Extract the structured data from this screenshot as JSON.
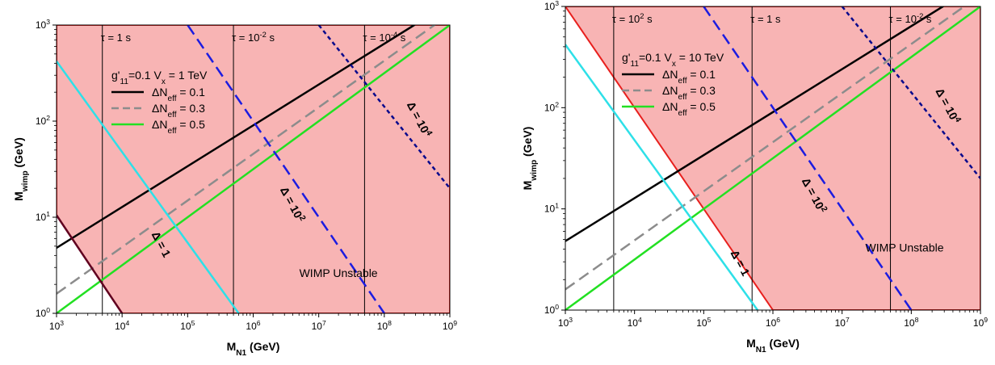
{
  "chart_data": [
    {
      "type": "line",
      "xlabel": "M_N1 (GeV)",
      "ylabel": "M_wimp (GeV)",
      "x_scale": "log",
      "y_scale": "log",
      "xlim": [
        1000,
        1000000000
      ],
      "ylim": [
        1,
        1000
      ],
      "x_ticks": [
        "10^3",
        "10^4",
        "10^5",
        "10^6",
        "10^7",
        "10^8",
        "10^9"
      ],
      "y_ticks": [
        "10^0",
        "10^1",
        "10^2",
        "10^3"
      ],
      "colors": {
        "region": "#f8b4b4",
        "region_border": "#e8201e",
        "line_01": "#000000",
        "line_03": "#8c8c8c",
        "line_05": "#22e022",
        "delta_1": "#2ee0e8",
        "delta_1e2": "#1c1ce0",
        "delta_1e4": "#0a0a8c",
        "lifetime": "#000000",
        "lower_boundary": "#600020"
      },
      "legend": {
        "header": "g'11=0.1  Vx = 1 TeV",
        "entries": [
          {
            "label": "ΔNeff = 0.1",
            "style": "solid",
            "color": "#000000"
          },
          {
            "label": "ΔNeff = 0.3",
            "style": "dashed",
            "color": "#8c8c8c"
          },
          {
            "label": "ΔNeff = 0.5",
            "style": "solid",
            "color": "#22e022"
          }
        ]
      },
      "lifetime_lines": [
        {
          "x": 5000,
          "label": "τ = 1 s"
        },
        {
          "x": 500000,
          "label": "τ = 10^-2 s"
        },
        {
          "x": 50000000,
          "label": "τ = 10^-4 s"
        }
      ],
      "series": [
        {
          "name": "ΔNeff = 0.1",
          "style": "solid",
          "color": "#000000",
          "x": [
            1000,
            1000000000
          ],
          "y": [
            4.8,
            1700
          ]
        },
        {
          "name": "ΔNeff = 0.3",
          "style": "dashed",
          "color": "#8c8c8c",
          "x": [
            1000,
            1000000000
          ],
          "y": [
            1.6,
            1300
          ]
        },
        {
          "name": "ΔNeff = 0.5",
          "style": "solid",
          "color": "#22e022",
          "x": [
            1000,
            1000000000
          ],
          "y": [
            1,
            1000
          ]
        },
        {
          "name": "Δ = 1",
          "style": "solid",
          "color": "#2ee0e8",
          "x": [
            1000,
            600000
          ],
          "y": [
            420,
            1
          ]
        },
        {
          "name": "Δ = 10^2",
          "style": "dashed",
          "color": "#1c1ce0",
          "x": [
            100000,
            100000000
          ],
          "y": [
            1000,
            1
          ]
        },
        {
          "name": "Δ = 10^4",
          "style": "dotted",
          "color": "#0a0a8c",
          "x": [
            10000000,
            1000000000
          ],
          "y": [
            1000,
            20
          ]
        },
        {
          "name": "",
          "style": "solid",
          "color": "#600020",
          "x": [
            1000,
            10000
          ],
          "y": [
            10.5,
            1
          ]
        }
      ],
      "region": {
        "label": "WIMP Unstable",
        "boundary": {
          "x": [
            1000,
            10000
          ],
          "y": [
            10.5,
            1
          ]
        }
      },
      "annotations": [
        {
          "text": "Δ = 1",
          "x": 35000,
          "y": 5
        },
        {
          "text": "Δ = 10^2",
          "x": 3500000,
          "y": 13
        },
        {
          "text": "Δ = 10^4",
          "x": 300000000,
          "y": 100
        },
        {
          "text": "WIMP Unstable",
          "x": 20000000,
          "y": 2.4
        }
      ]
    },
    {
      "type": "line",
      "xlabel": "M_N1 (GeV)",
      "ylabel": "M_wimp (GeV)",
      "x_scale": "log",
      "y_scale": "log",
      "xlim": [
        1000,
        1000000000
      ],
      "ylim": [
        1,
        1000
      ],
      "x_ticks": [
        "10^3",
        "10^4",
        "10^5",
        "10^6",
        "10^7",
        "10^8",
        "10^9"
      ],
      "y_ticks": [
        "10^0",
        "10^1",
        "10^2",
        "10^3"
      ],
      "colors": {
        "region": "#f8b4b4",
        "region_border": "#e8201e"
      },
      "legend": {
        "header": "g'11=0.1  Vx = 10 TeV",
        "entries": [
          {
            "label": "ΔNeff = 0.1",
            "style": "solid",
            "color": "#000000"
          },
          {
            "label": "ΔNeff = 0.3",
            "style": "dashed",
            "color": "#8c8c8c"
          },
          {
            "label": "ΔNeff = 0.5",
            "style": "solid",
            "color": "#22e022"
          }
        ]
      },
      "lifetime_lines": [
        {
          "x": 5000,
          "label": "τ = 10^2 s"
        },
        {
          "x": 500000,
          "label": "τ = 1 s"
        },
        {
          "x": 50000000,
          "label": "τ = 10^-2 s"
        }
      ],
      "series": [
        {
          "name": "ΔNeff = 0.1",
          "style": "solid",
          "color": "#000000",
          "x": [
            1000,
            1000000000
          ],
          "y": [
            4.8,
            1700
          ]
        },
        {
          "name": "ΔNeff = 0.3",
          "style": "dashed",
          "color": "#8c8c8c",
          "x": [
            1000,
            1000000000
          ],
          "y": [
            1.6,
            1300
          ]
        },
        {
          "name": "ΔNeff = 0.5",
          "style": "solid",
          "color": "#22e022",
          "x": [
            1000,
            1000000000
          ],
          "y": [
            1,
            1000
          ]
        },
        {
          "name": "Δ = 1",
          "style": "solid",
          "color": "#2ee0e8",
          "x": [
            1000,
            600000
          ],
          "y": [
            420,
            1
          ]
        },
        {
          "name": "Δ = 10^2",
          "style": "dashed",
          "color": "#1c1ce0",
          "x": [
            100000,
            100000000
          ],
          "y": [
            1000,
            1
          ]
        },
        {
          "name": "Δ = 10^4",
          "style": "dotted",
          "color": "#0a0a8c",
          "x": [
            10000000,
            1000000000
          ],
          "y": [
            1000,
            20
          ]
        }
      ],
      "region": {
        "label": "WIMP Unstable",
        "boundary": {
          "x": [
            1000,
            1000000
          ],
          "y": [
            1000,
            1
          ]
        }
      },
      "annotations": [
        {
          "text": "Δ = 1",
          "x": 300000,
          "y": 2.8
        },
        {
          "text": "Δ = 10^2",
          "x": 3500000,
          "y": 13
        },
        {
          "text": "Δ = 10^4",
          "x": 300000000,
          "y": 100
        },
        {
          "text": "WIMP Unstable",
          "x": 80000000,
          "y": 3.8
        }
      ]
    }
  ]
}
